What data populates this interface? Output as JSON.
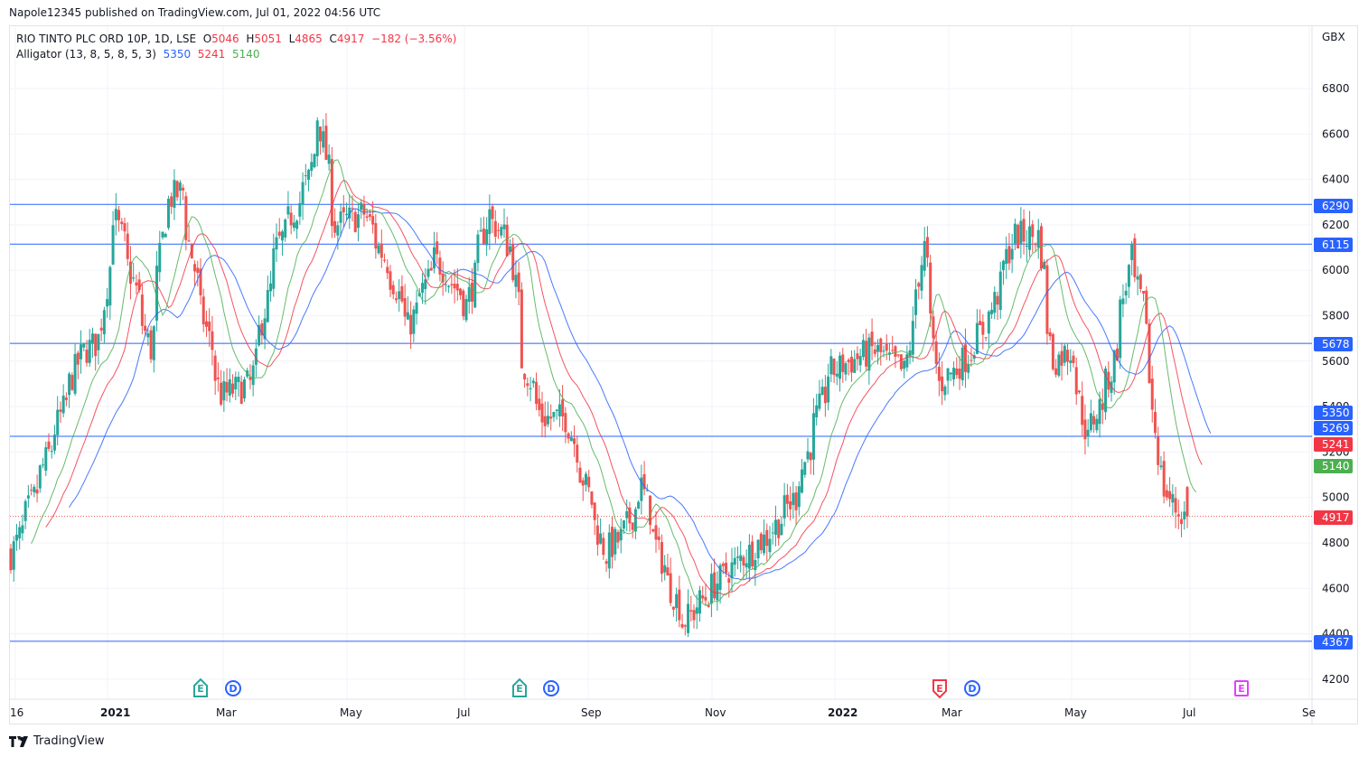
{
  "publisher_line": "Napole12345 published on TradingView.com, Jul 01, 2022 04:56 UTC",
  "legend": {
    "symbol": "RIO TINTO PLC ORD 10P, 1D, LSE",
    "open_label": "O",
    "open": "5046",
    "high_label": "H",
    "high": "5051",
    "low_label": "L",
    "low": "4865",
    "close_label": "C",
    "close": "4917",
    "change": "−182 (−3.56%)",
    "indicator": "Alligator (13, 8, 5, 8, 5, 3)",
    "jaw": "5350",
    "teeth": "5241",
    "lips": "5140"
  },
  "price_axis": {
    "currency": "GBX",
    "ticks": [
      "6800",
      "6600",
      "6400",
      "6200",
      "6000",
      "5800",
      "5600",
      "5400",
      "5200",
      "5000",
      "4800",
      "4600",
      "4400",
      "4200"
    ],
    "badges": [
      {
        "label": "6290",
        "color": "#2962ff"
      },
      {
        "label": "6115",
        "color": "#2962ff"
      },
      {
        "label": "5678",
        "color": "#2962ff"
      },
      {
        "label": "5350",
        "color": "#2962ff"
      },
      {
        "label": "5269",
        "color": "#2962ff"
      },
      {
        "label": "5241",
        "color": "#f23645"
      },
      {
        "label": "5140",
        "color": "#4caf50"
      },
      {
        "label": "4917",
        "color": "#f23645"
      },
      {
        "label": "4367",
        "color": "#2962ff"
      }
    ]
  },
  "time_axis": {
    "labels": [
      "16",
      "2021",
      "Mar",
      "May",
      "Jul",
      "Sep",
      "Nov",
      "2022",
      "Mar",
      "May",
      "Jul",
      "Se"
    ]
  },
  "events": [
    {
      "type": "E",
      "kind": "earnings-past",
      "color": "#26a69a"
    },
    {
      "type": "D",
      "kind": "dividend",
      "color": "#2962ff"
    },
    {
      "type": "E",
      "kind": "earnings-past",
      "color": "#26a69a"
    },
    {
      "type": "D",
      "kind": "dividend",
      "color": "#2962ff"
    },
    {
      "type": "E",
      "kind": "earnings-miss",
      "color": "#f23645"
    },
    {
      "type": "D",
      "kind": "dividend",
      "color": "#2962ff"
    },
    {
      "type": "E",
      "kind": "earnings-upcoming",
      "color": "#e040fb"
    }
  ],
  "footer": {
    "brand": "TradingView"
  },
  "colors": {
    "up": "#26a69a",
    "down": "#ef5350",
    "jaw": "#2962ff",
    "teeth": "#f23645",
    "lips": "#4caf50",
    "hline": "#2962ff",
    "grid": "#f0f3fa"
  },
  "chart_data": {
    "type": "candlestick",
    "title": "RIO TINTO PLC ORD 10P, 1D, LSE",
    "ylabel": "GBX",
    "ylim": [
      4130,
      6950
    ],
    "x_range": "Dec 2020 – Jul 2022 (daily)",
    "last_bar": {
      "open": 5046,
      "high": 5051,
      "low": 4865,
      "close": 4917,
      "change": -182,
      "change_pct": -3.56
    },
    "indicators": {
      "alligator": {
        "params": [
          13,
          8,
          5,
          8,
          5,
          3
        ],
        "jaw": 5350,
        "teeth": 5241,
        "lips": 5140
      }
    },
    "horizontal_lines": [
      6290,
      6115,
      5678,
      5269,
      4367
    ],
    "current_price_line": 4917,
    "close_waypoints": [
      {
        "date": "2020-12-14",
        "close": 4750
      },
      {
        "date": "2020-12-24",
        "close": 5000
      },
      {
        "date": "2021-01-04",
        "close": 5300
      },
      {
        "date": "2021-01-15",
        "close": 5620
      },
      {
        "date": "2021-01-25",
        "close": 5700
      },
      {
        "date": "2021-02-01",
        "close": 6250
      },
      {
        "date": "2021-02-10",
        "close": 5950
      },
      {
        "date": "2021-02-18",
        "close": 5650
      },
      {
        "date": "2021-02-26",
        "close": 6300
      },
      {
        "date": "2021-03-05",
        "close": 6350
      },
      {
        "date": "2021-03-12",
        "close": 5950
      },
      {
        "date": "2021-03-24",
        "close": 5450
      },
      {
        "date": "2021-04-07",
        "close": 5500
      },
      {
        "date": "2021-04-20",
        "close": 6100
      },
      {
        "date": "2021-05-05",
        "close": 6400
      },
      {
        "date": "2021-05-10",
        "close": 6680
      },
      {
        "date": "2021-05-18",
        "close": 6200
      },
      {
        "date": "2021-06-01",
        "close": 6250
      },
      {
        "date": "2021-06-15",
        "close": 5950
      },
      {
        "date": "2021-06-22",
        "close": 5750
      },
      {
        "date": "2021-07-05",
        "close": 6050
      },
      {
        "date": "2021-07-20",
        "close": 5850
      },
      {
        "date": "2021-07-30",
        "close": 6250
      },
      {
        "date": "2021-08-10",
        "close": 6100
      },
      {
        "date": "2021-08-16",
        "close": 5600
      },
      {
        "date": "2021-08-25",
        "close": 5350
      },
      {
        "date": "2021-09-06",
        "close": 5350
      },
      {
        "date": "2021-09-15",
        "close": 5050
      },
      {
        "date": "2021-09-24",
        "close": 4750
      },
      {
        "date": "2021-10-04",
        "close": 4850
      },
      {
        "date": "2021-10-12",
        "close": 5050
      },
      {
        "date": "2021-10-20",
        "close": 4750
      },
      {
        "date": "2021-11-01",
        "close": 4450
      },
      {
        "date": "2021-11-10",
        "close": 4550
      },
      {
        "date": "2021-11-19",
        "close": 4650
      },
      {
        "date": "2021-12-01",
        "close": 4750
      },
      {
        "date": "2021-12-13",
        "close": 4850
      },
      {
        "date": "2021-12-24",
        "close": 5000
      },
      {
        "date": "2022-01-10",
        "close": 5550
      },
      {
        "date": "2022-01-20",
        "close": 5600
      },
      {
        "date": "2022-01-31",
        "close": 5650
      },
      {
        "date": "2022-02-15",
        "close": 5550
      },
      {
        "date": "2022-02-24",
        "close": 6100
      },
      {
        "date": "2022-03-03",
        "close": 5500
      },
      {
        "date": "2022-03-15",
        "close": 5600
      },
      {
        "date": "2022-03-28",
        "close": 5800
      },
      {
        "date": "2022-04-08",
        "close": 6150
      },
      {
        "date": "2022-04-20",
        "close": 6150
      },
      {
        "date": "2022-04-27",
        "close": 5600
      },
      {
        "date": "2022-05-06",
        "close": 5650
      },
      {
        "date": "2022-05-13",
        "close": 5250
      },
      {
        "date": "2022-05-25",
        "close": 5550
      },
      {
        "date": "2022-06-03",
        "close": 6050
      },
      {
        "date": "2022-06-10",
        "close": 5800
      },
      {
        "date": "2022-06-17",
        "close": 5100
      },
      {
        "date": "2022-06-24",
        "close": 4950
      },
      {
        "date": "2022-06-30",
        "close": 4917
      }
    ]
  }
}
